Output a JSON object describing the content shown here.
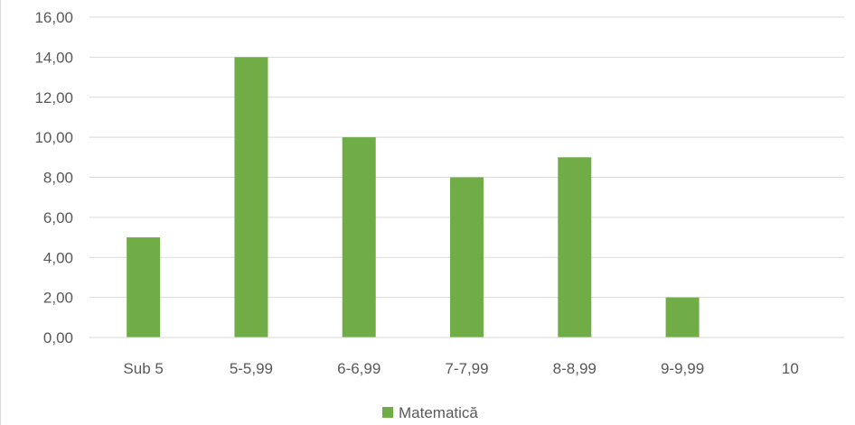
{
  "chart_data": {
    "type": "bar",
    "categories": [
      "Sub 5",
      "5-5,99",
      "6-6,99",
      "7-7,99",
      "8-8,99",
      "9-9,99",
      "10"
    ],
    "series": [
      {
        "name": "Matematică",
        "values": [
          5,
          14,
          10,
          8,
          9,
          2,
          0
        ],
        "color": "#70ad47"
      }
    ],
    "ylim": [
      0,
      16
    ],
    "y_ticks": [
      0,
      2,
      4,
      6,
      8,
      10,
      12,
      14,
      16
    ],
    "y_tick_labels": [
      "0,00",
      "2,00",
      "4,00",
      "6,00",
      "8,00",
      "10,00",
      "12,00",
      "14,00",
      "16,00"
    ],
    "grid": true,
    "legend_position": "bottom",
    "title": "",
    "xlabel": "",
    "ylabel": ""
  }
}
